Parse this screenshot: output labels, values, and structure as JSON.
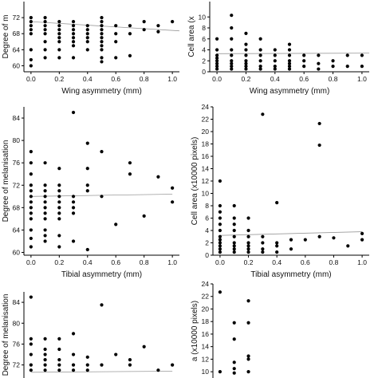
{
  "chart_data": [
    {
      "type": "scatter",
      "xlabel": "Wing asymmetry (mm)",
      "ylabel": "Degree of m",
      "xlim": [
        -0.05,
        1.05
      ],
      "ylim": [
        58.5,
        76
      ],
      "xticks": [
        "0.0",
        "0.2",
        "0.4",
        "0.6",
        "0.8",
        "1.0"
      ],
      "xtick_values": [
        0,
        0.2,
        0.4,
        0.6,
        0.8,
        1.0
      ],
      "yticks": [
        "60",
        "64",
        "68",
        "72"
      ],
      "ytick_values": [
        60,
        64,
        68,
        72
      ],
      "trend": [
        [
          0,
          71.0
        ],
        [
          1.05,
          68.7
        ]
      ],
      "x": [
        0,
        0,
        0,
        0,
        0,
        0,
        0,
        0,
        0.1,
        0.1,
        0.1,
        0.1,
        0.1,
        0.1,
        0.1,
        0.1,
        0.2,
        0.2,
        0.2,
        0.2,
        0.2,
        0.2,
        0.2,
        0.2,
        0.3,
        0.3,
        0.3,
        0.3,
        0.3,
        0.3,
        0.3,
        0.3,
        0.4,
        0.4,
        0.4,
        0.4,
        0.4,
        0.4,
        0.5,
        0.5,
        0.5,
        0.5,
        0.5,
        0.5,
        0.5,
        0.5,
        0.5,
        0.5,
        0.5,
        0.6,
        0.6,
        0.6,
        0.6,
        0.7,
        0.7,
        0.7,
        0.8,
        0.8,
        0.9,
        0.9,
        1.0
      ],
      "y": [
        60,
        61.5,
        64,
        68,
        69,
        70,
        71,
        72,
        62,
        64,
        66,
        68,
        69,
        70,
        71,
        72,
        62,
        64,
        66,
        67,
        68,
        69,
        70,
        71,
        62,
        65,
        66,
        67,
        68,
        69,
        70,
        71,
        64,
        66,
        67,
        68,
        69,
        70,
        61,
        62,
        64,
        65,
        66,
        67,
        68,
        69,
        70,
        71,
        72,
        62,
        66,
        68,
        70,
        62.5,
        68,
        70,
        69,
        71,
        68.5,
        70,
        71
      ]
    },
    {
      "type": "scatter",
      "xlabel": "Wing asymmetry (mm)",
      "ylabel": "Cell area (x",
      "xlim": [
        -0.05,
        1.05
      ],
      "ylim": [
        0,
        12.8
      ],
      "xticks": [
        "0.0",
        "0.2",
        "0.4",
        "0.6",
        "0.8",
        "1.0"
      ],
      "xtick_values": [
        0,
        0.2,
        0.4,
        0.6,
        0.8,
        1.0
      ],
      "yticks": [
        "0",
        "2",
        "4",
        "6",
        "8",
        "10"
      ],
      "ytick_values": [
        0,
        2,
        4,
        6,
        8,
        10
      ],
      "trend": [
        [
          0,
          3.3
        ],
        [
          1.05,
          3.4
        ]
      ],
      "x": [
        0,
        0,
        0,
        0,
        0,
        0,
        0,
        0,
        0.1,
        0.1,
        0.1,
        0.1,
        0.1,
        0.1,
        0.1,
        0.1,
        0.1,
        0.2,
        0.2,
        0.2,
        0.2,
        0.2,
        0.2,
        0.2,
        0.2,
        0.3,
        0.3,
        0.3,
        0.3,
        0.3,
        0.3,
        0.4,
        0.4,
        0.4,
        0.4,
        0.4,
        0.5,
        0.5,
        0.5,
        0.5,
        0.5,
        0.5,
        0.5,
        0.6,
        0.6,
        0.6,
        0.7,
        0.7,
        0.7,
        0.8,
        0.8,
        0.9,
        0.9,
        1.0,
        1.0
      ],
      "y": [
        0.5,
        1,
        1.5,
        2,
        2.5,
        3,
        4,
        6,
        0.5,
        1,
        1.5,
        2,
        3,
        4,
        6,
        8,
        10.3,
        0.5,
        1,
        1.5,
        2,
        3,
        4,
        5,
        7,
        0.5,
        1,
        2,
        3,
        4,
        6,
        0.5,
        1,
        2,
        3,
        4,
        0.5,
        1,
        1.5,
        2,
        3,
        4,
        5,
        1,
        2,
        3,
        0.5,
        1.5,
        3,
        1,
        2,
        1,
        3,
        1,
        3
      ]
    },
    {
      "type": "scatter",
      "xlabel": "Tibial asymmetry (mm)",
      "ylabel": "Degree of melanisation",
      "xlim": [
        -0.05,
        1.05
      ],
      "ylim": [
        59.5,
        86
      ],
      "xticks": [
        "0.0",
        "0.2",
        "0.4",
        "0.6",
        "0.8",
        "1.0"
      ],
      "xtick_values": [
        0,
        0.2,
        0.4,
        0.6,
        0.8,
        1.0
      ],
      "yticks": [
        "60",
        "64",
        "68",
        "72",
        "76",
        "80",
        "84"
      ],
      "ytick_values": [
        60,
        64,
        68,
        72,
        76,
        80,
        84
      ],
      "trend": [
        [
          0,
          70.0
        ],
        [
          1.0,
          70.4
        ]
      ],
      "x": [
        0,
        0,
        0,
        0,
        0,
        0,
        0,
        0,
        0,
        0,
        0,
        0,
        0,
        0.1,
        0.1,
        0.1,
        0.1,
        0.1,
        0.1,
        0.1,
        0.1,
        0.1,
        0.1,
        0.1,
        0.2,
        0.2,
        0.2,
        0.2,
        0.2,
        0.2,
        0.2,
        0.2,
        0.2,
        0.2,
        0.3,
        0.3,
        0.3,
        0.3,
        0.3,
        0.3,
        0.4,
        0.4,
        0.4,
        0.4,
        0.4,
        0.5,
        0.5,
        0.6,
        0.7,
        0.7,
        0.8,
        0.9,
        1.0,
        1.0
      ],
      "y": [
        61,
        62.5,
        64,
        66,
        67,
        68,
        69,
        70,
        71,
        72,
        74,
        76,
        78,
        62,
        63,
        64,
        66,
        67,
        68,
        69,
        70,
        71,
        72,
        76,
        61,
        63,
        66,
        67,
        68,
        69,
        70,
        71,
        72,
        75,
        62,
        67,
        68,
        69,
        70,
        85,
        60.5,
        71,
        72,
        75,
        79.5,
        70,
        78,
        65,
        74,
        76,
        66.5,
        73.5,
        69,
        71.5
      ]
    },
    {
      "type": "scatter",
      "xlabel": "Tibial asymmetry (mm)",
      "ylabel": "Cell area (x10000 pixels)",
      "xlim": [
        -0.05,
        1.05
      ],
      "ylim": [
        0,
        24
      ],
      "xticks": [
        "0.0",
        "0.2",
        "0.4",
        "0.6",
        "0.8",
        "1.0"
      ],
      "xtick_values": [
        0,
        0.2,
        0.4,
        0.6,
        0.8,
        1.0
      ],
      "yticks": [
        "0",
        "2",
        "4",
        "6",
        "8",
        "10",
        "12",
        "14",
        "16",
        "18",
        "20",
        "22",
        "24"
      ],
      "ytick_values": [
        0,
        2,
        4,
        6,
        8,
        10,
        12,
        14,
        16,
        18,
        20,
        22,
        24
      ],
      "trend": [
        [
          0,
          3.2
        ],
        [
          1.0,
          3.8
        ]
      ],
      "x": [
        0,
        0,
        0,
        0,
        0,
        0,
        0,
        0,
        0,
        0,
        0,
        0,
        0.1,
        0.1,
        0.1,
        0.1,
        0.1,
        0.1,
        0.1,
        0.1,
        0.1,
        0.2,
        0.2,
        0.2,
        0.2,
        0.2,
        0.2,
        0.2,
        0.3,
        0.3,
        0.3,
        0.3,
        0.3,
        0.4,
        0.4,
        0.4,
        0.4,
        0.5,
        0.5,
        0.6,
        0.7,
        0.7,
        0.7,
        0.8,
        0.9,
        1.0,
        1.0
      ],
      "y": [
        0.5,
        1,
        1.5,
        2,
        2.5,
        3,
        4,
        5,
        6,
        7,
        8,
        12,
        0.5,
        1,
        1.5,
        2,
        3,
        4,
        5,
        6,
        8,
        0.5,
        1,
        1.5,
        2,
        3,
        4,
        6,
        0.5,
        1,
        2,
        3,
        22.8,
        0.5,
        1.5,
        2,
        8.5,
        1,
        2.5,
        2.5,
        3,
        17.8,
        21.3,
        2.8,
        1.5,
        2.5,
        3.5
      ]
    },
    {
      "type": "scatter",
      "xlabel": "",
      "ylabel": "Degree of melanisation",
      "xlim": [
        -0.05,
        1.05
      ],
      "ylim": [
        69.5,
        86
      ],
      "xticks": [],
      "xtick_values": [],
      "yticks": [
        "72",
        "76",
        "80",
        "84"
      ],
      "ytick_values": [
        72,
        76,
        80,
        84
      ],
      "trend": [
        [
          0,
          70.6
        ],
        [
          1.0,
          70.8
        ]
      ],
      "x": [
        0,
        0,
        0,
        0,
        0,
        0,
        0.1,
        0.1,
        0.1,
        0.1,
        0.1,
        0.1,
        0.2,
        0.2,
        0.2,
        0.2,
        0.2,
        0.3,
        0.3,
        0.3,
        0.3,
        0.4,
        0.4,
        0.4,
        0.5,
        0.5,
        0.6,
        0.7,
        0.7,
        0.8,
        0.9,
        1.0
      ],
      "y": [
        71,
        72,
        74,
        76,
        77,
        85,
        71,
        72,
        73,
        74,
        75,
        77,
        71,
        72,
        73,
        75,
        77,
        71,
        72,
        74,
        78,
        71,
        72,
        73.5,
        72,
        83.5,
        74,
        72,
        73,
        75.5,
        71,
        72
      ]
    },
    {
      "type": "scatter",
      "xlabel": "",
      "ylabel": "a (x10000 pixels)",
      "xlim": [
        -0.05,
        1.05
      ],
      "ylim": [
        9,
        24
      ],
      "xticks": [],
      "xtick_values": [],
      "yticks": [
        "10",
        "12",
        "14",
        "16",
        "18",
        "20",
        "22",
        "24"
      ],
      "ytick_values": [
        10,
        12,
        14,
        16,
        18,
        20,
        22,
        24
      ],
      "trend": [],
      "x": [
        0,
        0,
        0.1,
        0.1,
        0.1,
        0.1,
        0.1,
        0.2,
        0.2,
        0.2,
        0.2,
        0.2
      ],
      "y": [
        10,
        22.7,
        9.8,
        10.5,
        11.5,
        15.2,
        17.8,
        10,
        12,
        12.5,
        17.8,
        21.3
      ]
    }
  ]
}
